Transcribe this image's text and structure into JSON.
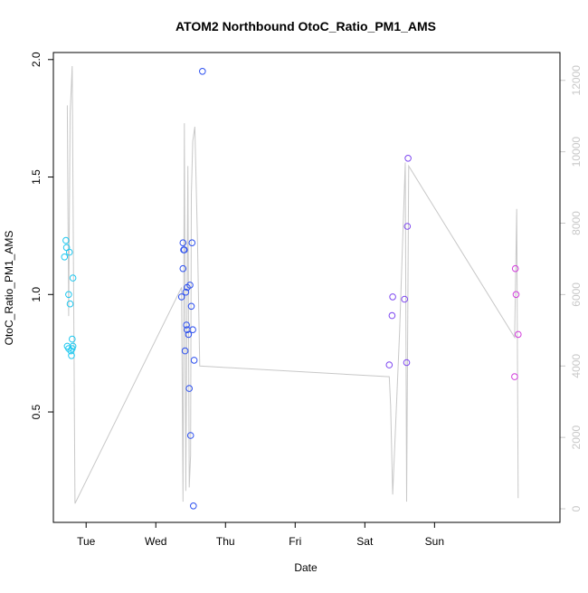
{
  "chart_data": {
    "type": "scatter",
    "title": "ATOM2 Northbound OtoC_Ratio_PM1_AMS",
    "xlabel": "Date",
    "ylabel": "OtoC_Ratio_PM1_AMS",
    "x_unit": "days",
    "xlim": [
      0.53,
      7.8
    ],
    "ylim": [
      0.03,
      2.03
    ],
    "x_ticks": [
      {
        "value": 1,
        "label": "Tue"
      },
      {
        "value": 2,
        "label": "Wed"
      },
      {
        "value": 3,
        "label": "Thu"
      },
      {
        "value": 4,
        "label": "Fri"
      },
      {
        "value": 5,
        "label": "Sat"
      },
      {
        "value": 6,
        "label": "Sun"
      }
    ],
    "y_ticks": [
      {
        "value": 0.5,
        "label": "0.5"
      },
      {
        "value": 1.0,
        "label": "1.0"
      },
      {
        "value": 1.5,
        "label": "1.5"
      },
      {
        "value": 2.0,
        "label": "2.0"
      }
    ],
    "right_axis": {
      "ylim": [
        -380,
        12780
      ],
      "ticks": [
        {
          "value": 0,
          "label": "0"
        },
        {
          "value": 2000,
          "label": "2000"
        },
        {
          "value": 4000,
          "label": "4000"
        },
        {
          "value": 6000,
          "label": "6000"
        },
        {
          "value": 8000,
          "label": "8000"
        },
        {
          "value": 10000,
          "label": "10000"
        },
        {
          "value": 12000,
          "label": "12000"
        }
      ]
    },
    "points": [
      {
        "x": 0.69,
        "y": 1.16,
        "color": "#1ec8f0"
      },
      {
        "x": 0.71,
        "y": 1.23,
        "color": "#1ec8f0"
      },
      {
        "x": 0.72,
        "y": 1.2,
        "color": "#1ec8f0"
      },
      {
        "x": 0.73,
        "y": 0.78,
        "color": "#1ec8f0"
      },
      {
        "x": 0.75,
        "y": 1.0,
        "color": "#1ec8f0"
      },
      {
        "x": 0.75,
        "y": 0.77,
        "color": "#1ec8f0"
      },
      {
        "x": 0.76,
        "y": 1.18,
        "color": "#1ec8f0"
      },
      {
        "x": 0.77,
        "y": 0.96,
        "color": "#1ec8f0"
      },
      {
        "x": 0.78,
        "y": 0.76,
        "color": "#1ec8f0"
      },
      {
        "x": 0.79,
        "y": 0.74,
        "color": "#1ec8f0"
      },
      {
        "x": 0.8,
        "y": 0.77,
        "color": "#1ec8f0"
      },
      {
        "x": 0.8,
        "y": 0.81,
        "color": "#1ec8f0"
      },
      {
        "x": 0.81,
        "y": 1.07,
        "color": "#1ec8f0"
      },
      {
        "x": 0.81,
        "y": 0.78,
        "color": "#1ec8f0"
      },
      {
        "x": 2.37,
        "y": 0.99,
        "color": "#2d50f0"
      },
      {
        "x": 2.39,
        "y": 1.11,
        "color": "#2d50f0"
      },
      {
        "x": 2.39,
        "y": 1.22,
        "color": "#2d50f0"
      },
      {
        "x": 2.4,
        "y": 1.19,
        "color": "#2d50f0"
      },
      {
        "x": 2.41,
        "y": 1.19,
        "color": "#2d50f0"
      },
      {
        "x": 2.42,
        "y": 0.76,
        "color": "#2d50f0"
      },
      {
        "x": 2.43,
        "y": 1.01,
        "color": "#2d50f0"
      },
      {
        "x": 2.44,
        "y": 0.87,
        "color": "#2d50f0"
      },
      {
        "x": 2.45,
        "y": 1.03,
        "color": "#2d50f0"
      },
      {
        "x": 2.45,
        "y": 0.85,
        "color": "#2d50f0"
      },
      {
        "x": 2.47,
        "y": 0.83,
        "color": "#2d50f0"
      },
      {
        "x": 2.48,
        "y": 0.6,
        "color": "#2d50f0"
      },
      {
        "x": 2.49,
        "y": 1.04,
        "color": "#2d50f0"
      },
      {
        "x": 2.5,
        "y": 0.4,
        "color": "#2d50f0"
      },
      {
        "x": 2.51,
        "y": 0.95,
        "color": "#2d50f0"
      },
      {
        "x": 2.52,
        "y": 1.22,
        "color": "#2d50f0"
      },
      {
        "x": 2.53,
        "y": 0.85,
        "color": "#2d50f0"
      },
      {
        "x": 2.54,
        "y": 0.1,
        "color": "#2d50f0"
      },
      {
        "x": 2.55,
        "y": 0.72,
        "color": "#2d50f0"
      },
      {
        "x": 2.67,
        "y": 1.95,
        "color": "#2d50f0"
      },
      {
        "x": 5.35,
        "y": 0.7,
        "color": "#7d46f0"
      },
      {
        "x": 5.39,
        "y": 0.91,
        "color": "#7d46f0"
      },
      {
        "x": 5.4,
        "y": 0.99,
        "color": "#7d46f0"
      },
      {
        "x": 5.57,
        "y": 0.98,
        "color": "#7d46f0"
      },
      {
        "x": 5.6,
        "y": 0.71,
        "color": "#7d46f0"
      },
      {
        "x": 5.61,
        "y": 1.29,
        "color": "#7d46f0"
      },
      {
        "x": 5.62,
        "y": 1.58,
        "color": "#7d46f0"
      },
      {
        "x": 7.15,
        "y": 0.65,
        "color": "#d23cdc"
      },
      {
        "x": 7.16,
        "y": 1.11,
        "color": "#d23cdc"
      },
      {
        "x": 7.17,
        "y": 1.0,
        "color": "#d23cdc"
      },
      {
        "x": 7.2,
        "y": 0.83,
        "color": "#d23cdc"
      }
    ],
    "line_series": {
      "axis": "right",
      "color": "#c8c8c8",
      "points": [
        [
          0.73,
          11300
        ],
        [
          0.75,
          5400
        ],
        [
          0.77,
          11100
        ],
        [
          0.79,
          11900
        ],
        [
          0.8,
          12400
        ],
        [
          0.84,
          150
        ],
        [
          2.37,
          6200
        ],
        [
          2.39,
          200
        ],
        [
          2.41,
          10800
        ],
        [
          2.43,
          500
        ],
        [
          2.46,
          9600
        ],
        [
          2.48,
          600
        ],
        [
          2.5,
          1500
        ],
        [
          2.51,
          8800
        ],
        [
          2.53,
          10300
        ],
        [
          2.56,
          10700
        ],
        [
          2.6,
          7400
        ],
        [
          2.63,
          4000
        ],
        [
          5.35,
          3700
        ],
        [
          5.37,
          2900
        ],
        [
          5.4,
          400
        ],
        [
          5.5,
          5000
        ],
        [
          5.58,
          9700
        ],
        [
          5.6,
          200
        ],
        [
          5.63,
          9600
        ],
        [
          7.15,
          4800
        ],
        [
          7.18,
          8400
        ],
        [
          7.2,
          300
        ]
      ]
    },
    "grid": false,
    "marker": "open-circle"
  }
}
